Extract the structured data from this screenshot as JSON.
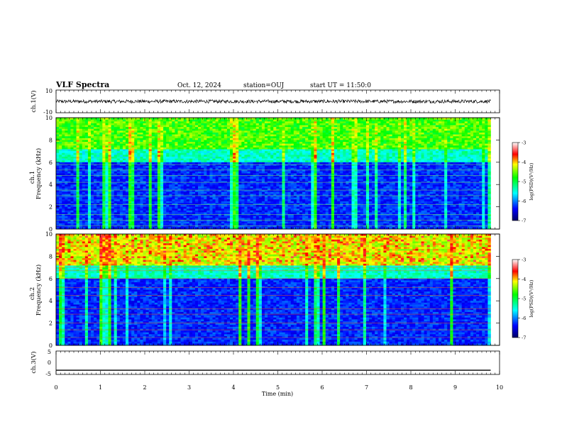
{
  "header": {
    "title": "VLF Spectra",
    "date": "Oct. 12, 2024",
    "station": "station=OUJ",
    "start_ut": "start UT =  11:50:0"
  },
  "chart_data": [
    {
      "type": "line",
      "panel": "ch1-waveform",
      "ylabel": "ch.1(V)",
      "ylim": [
        -10,
        10
      ],
      "y_ticks": [
        "10",
        "-10"
      ],
      "xlim": [
        0,
        10
      ],
      "series": [
        {
          "values_desc": "noise",
          "mean": 0,
          "amplitude": 1.5
        }
      ]
    },
    {
      "type": "heatmap",
      "panel": "ch1-spectrogram",
      "ylabel": "Frequency (kHz)",
      "channel_label": "ch.1",
      "ylim": [
        0,
        10
      ],
      "y_ticks": [
        "0",
        "2",
        "4",
        "6",
        "8",
        "10"
      ],
      "xlim": [
        0,
        9.8
      ],
      "colorbar": {
        "label": "log(PSD)(V²/Hz)",
        "range": [
          -7,
          -3
        ],
        "ticks": [
          "-3",
          "-4",
          "-5",
          "-6",
          "-7"
        ]
      }
    },
    {
      "type": "heatmap",
      "panel": "ch2-spectrogram",
      "ylabel": "Frequency (kHz)",
      "channel_label": "ch.2",
      "ylim": [
        0,
        10
      ],
      "y_ticks": [
        "0",
        "2",
        "4",
        "6",
        "8",
        "10"
      ],
      "xlim": [
        0,
        9.8
      ],
      "colorbar": {
        "label": "log(PSD)(V²/Hz)",
        "range": [
          -7,
          -3
        ],
        "ticks": [
          "-3",
          "-4",
          "-5",
          "-6",
          "-7"
        ]
      }
    },
    {
      "type": "line",
      "panel": "ch3-waveform",
      "ylabel": "ch.3(V)",
      "ylim": [
        -5,
        5
      ],
      "y_ticks": [
        "5",
        "0",
        "-5"
      ],
      "xlim": [
        0,
        10
      ],
      "series": [
        {
          "values_desc": "flat",
          "mean": -3.2
        }
      ]
    }
  ],
  "xaxis": {
    "label": "Time (min)",
    "ticks": [
      "0",
      "1",
      "2",
      "3",
      "4",
      "5",
      "6",
      "7",
      "8",
      "9",
      "10"
    ]
  }
}
